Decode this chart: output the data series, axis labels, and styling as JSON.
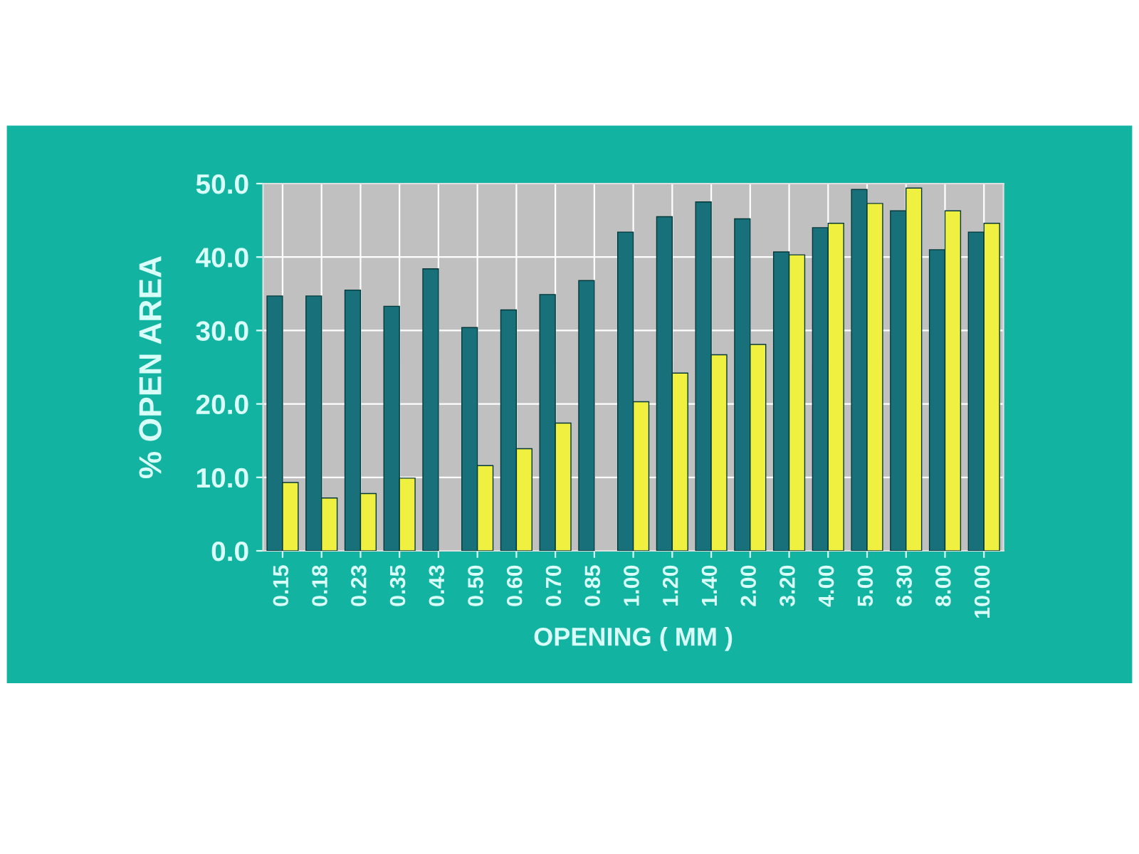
{
  "chart_data": {
    "type": "bar",
    "xlabel": "OPENING ( MM )",
    "ylabel": "% OPEN AREA",
    "categories": [
      "0.15",
      "0.18",
      "0.23",
      "0.35",
      "0.43",
      "0.50",
      "0.60",
      "0.70",
      "0.85",
      "1.00",
      "1.20",
      "1.40",
      "2.00",
      "3.20",
      "4.00",
      "5.00",
      "6.30",
      "8.00",
      "10.00"
    ],
    "series": [
      {
        "color": "#17707a",
        "values": [
          34.7,
          34.7,
          35.5,
          33.3,
          38.4,
          30.4,
          32.8,
          34.9,
          36.8,
          43.4,
          45.5,
          47.5,
          45.2,
          40.7,
          44.0,
          49.2,
          46.3,
          41.0,
          43.4
        ]
      },
      {
        "color": "#f0f040",
        "values": [
          9.3,
          7.2,
          7.8,
          9.9,
          null,
          11.6,
          13.9,
          17.4,
          null,
          20.3,
          24.2,
          26.7,
          28.1,
          40.3,
          44.6,
          47.3,
          49.4,
          46.3,
          44.6
        ]
      }
    ],
    "ylim": [
      0,
      50
    ],
    "yticks": [
      {
        "value": 0,
        "label": "0.0"
      },
      {
        "value": 10,
        "label": "10.0"
      },
      {
        "value": 20,
        "label": "20.0"
      },
      {
        "value": 30,
        "label": "30.0"
      },
      {
        "value": 40,
        "label": "40.0"
      },
      {
        "value": 50,
        "label": "50.0"
      }
    ],
    "grid": true
  }
}
